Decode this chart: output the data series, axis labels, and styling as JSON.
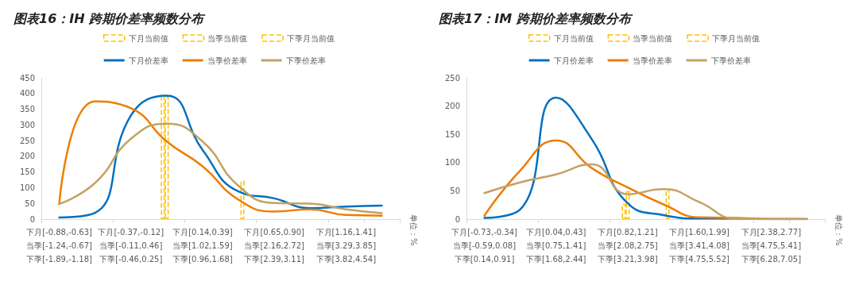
{
  "chart_data": [
    {
      "type": "line",
      "title": "图表16：IH 跨期价差率频数分布",
      "categories": [
        "下月[-0.88,-0.63]\n当季[-1.24,-0.67]\n下季[-1.89,-1.18]",
        null,
        "下月[-0.37,-0.12]\n当季[-0.11,0.46]\n下季[-0.46,0.25]",
        null,
        "下月[0.14,0.39]\n当季[1.02,1.59]\n下季[0.96,1.68]",
        null,
        "下月[0.65,0.90]\n当季[2.16,2.72]\n下季[2.39,3.11]",
        null,
        "下月[1.16,1.41]\n当季[3.29,3.85]\n下季[3.82,4.54]",
        null
      ],
      "series": [
        {
          "name": "下月当前值",
          "type": "bar",
          "color": "#ffc000",
          "line_style": "dashed",
          "values": [
            null,
            null,
            null,
            395,
            null,
            null,
            null,
            null,
            null,
            null
          ]
        },
        {
          "name": "当季当前值",
          "type": "bar",
          "color": "#ffc000",
          "line_style": "dashed",
          "values": [
            null,
            null,
            null,
            390,
            null,
            null,
            null,
            null,
            null,
            null
          ]
        },
        {
          "name": "下季月当前值",
          "type": "bar",
          "color": "#ffc000",
          "line_style": "dashed",
          "values": [
            null,
            null,
            null,
            null,
            null,
            122,
            null,
            null,
            null,
            null
          ]
        },
        {
          "name": "下月价差率",
          "color": "#0070c0",
          "values": [
            5,
            20,
            330,
            393,
            220,
            88,
            66,
            35,
            40,
            43
          ]
        },
        {
          "name": "当季价差率",
          "color": "#ed7d00",
          "values": [
            48,
            375,
            353,
            247,
            168,
            62,
            24,
            31,
            13,
            11
          ]
        },
        {
          "name": "下季价差率",
          "color": "#c4a262",
          "values": [
            48,
            115,
            256,
            304,
            247,
            106,
            51,
            49,
            31,
            19
          ]
        }
      ],
      "ylim": [
        0,
        450
      ],
      "yticks": [
        0,
        50,
        100,
        150,
        200,
        250,
        300,
        350,
        400,
        450
      ],
      "grid": false,
      "legend": "top",
      "marker": "none",
      "line_style": "solid",
      "annotations": [
        "单位：%"
      ]
    },
    {
      "type": "line",
      "title": "图表17：IM 跨期价差率频数分布",
      "categories": [
        "下月[-0.73,-0.34]\n当季[-0.59,0.08]\n下季[0.14,0.91]",
        null,
        "下月[0.04,0.43]\n当季[0.75,1.41]\n下季[1.68,2.44]",
        null,
        "下月[0.82,1.21]\n当季[2.08,2.75]\n下季[3.21,3.98]",
        null,
        "下月[1.60,1.99]\n当季[3.41,4.08]\n下季[4.75,5.52]",
        null,
        "下月[2.38,2.77]\n当季[4.75,5.41]\n下季[6.28,7.05]",
        null
      ],
      "series": [
        {
          "name": "下月当前值",
          "type": "bar",
          "color": "#ffc000",
          "line_style": "dashed",
          "values": [
            null,
            null,
            null,
            null,
            27,
            null,
            null,
            null,
            null,
            null
          ]
        },
        {
          "name": "当季当前值",
          "type": "bar",
          "color": "#ffc000",
          "line_style": "dashed",
          "values": [
            null,
            null,
            null,
            null,
            49,
            null,
            null,
            null,
            null,
            null
          ]
        },
        {
          "name": "下季月当前值",
          "type": "bar",
          "color": "#ffc000",
          "line_style": "dashed",
          "values": [
            null,
            null,
            null,
            null,
            null,
            53,
            null,
            null,
            null,
            null
          ]
        },
        {
          "name": "下月价差率",
          "color": "#0070c0",
          "values": [
            2,
            17,
            215,
            141,
            28,
            7,
            1,
            1,
            0,
            0
          ]
        },
        {
          "name": "当季价差率",
          "color": "#ed7d00",
          "values": [
            6,
            86,
            139,
            90,
            56,
            26,
            3,
            2,
            0,
            0
          ]
        },
        {
          "name": "下季价差率",
          "color": "#c4a262",
          "values": [
            46,
            65,
            79,
            97,
            44,
            53,
            30,
            1,
            0,
            0
          ]
        }
      ],
      "ylim": [
        0,
        250
      ],
      "yticks": [
        0,
        50,
        100,
        150,
        200,
        250
      ],
      "grid": false,
      "legend": "top",
      "marker": "none",
      "line_style": "solid",
      "annotations": [
        "单位：%"
      ]
    }
  ]
}
